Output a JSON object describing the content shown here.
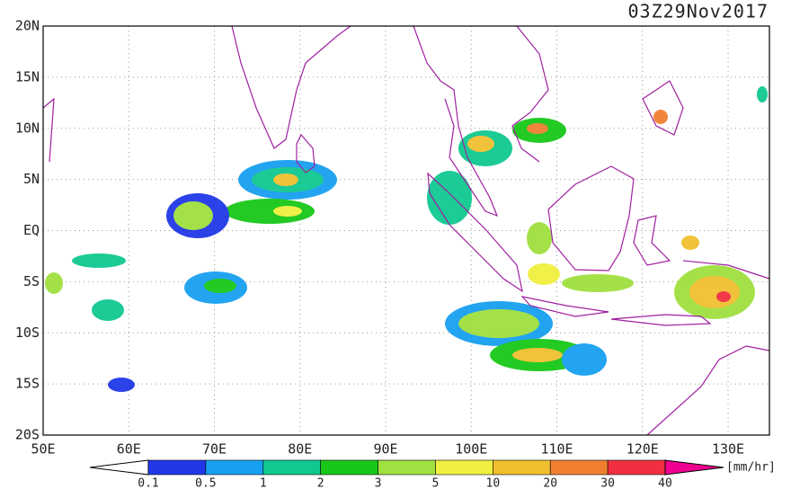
{
  "title": "03Z29Nov2017",
  "lat_labels": [
    "20N",
    "15N",
    "10N",
    "5N",
    "EQ",
    "5S",
    "10S",
    "15S",
    "20S"
  ],
  "lon_labels": [
    "50E",
    "60E",
    "70E",
    "80E",
    "90E",
    "100E",
    "110E",
    "120E",
    "130E"
  ],
  "colorbar": {
    "labels": [
      "0.1",
      "0.5",
      "1",
      "2",
      "3",
      "5",
      "10",
      "20",
      "30",
      "40"
    ],
    "colors": [
      "#ffffff",
      "#2038e8",
      "#18a0f0",
      "#10c890",
      "#18c818",
      "#a0e040",
      "#f0f040",
      "#f0c030",
      "#f08030",
      "#f03040",
      "#f00090"
    ],
    "unit": "[mm/hr]"
  }
}
